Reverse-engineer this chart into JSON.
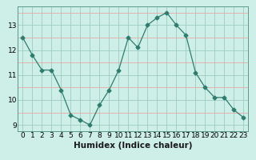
{
  "x": [
    0,
    1,
    2,
    3,
    4,
    5,
    6,
    7,
    8,
    9,
    10,
    11,
    12,
    13,
    14,
    15,
    16,
    17,
    18,
    19,
    20,
    21,
    22,
    23
  ],
  "y": [
    12.5,
    11.8,
    11.2,
    11.2,
    10.4,
    9.4,
    9.2,
    9.0,
    9.8,
    10.4,
    11.2,
    12.5,
    12.1,
    13.0,
    13.3,
    13.5,
    13.0,
    12.6,
    11.1,
    10.5,
    10.1,
    10.1,
    9.6,
    9.3
  ],
  "line_color": "#2e7d6e",
  "marker": "D",
  "marker_size": 2.5,
  "bg_color": "#ceeee8",
  "grid_color_major": "#9eccc4",
  "grid_color_minor": "#e8a8a8",
  "xlabel": "Humidex (Indice chaleur)",
  "xlim": [
    -0.5,
    23.5
  ],
  "ylim": [
    8.75,
    13.75
  ],
  "yticks": [
    9,
    10,
    11,
    12,
    13
  ],
  "xticks": [
    0,
    1,
    2,
    3,
    4,
    5,
    6,
    7,
    8,
    9,
    10,
    11,
    12,
    13,
    14,
    15,
    16,
    17,
    18,
    19,
    20,
    21,
    22,
    23
  ],
  "xlabel_fontsize": 7.5,
  "tick_fontsize": 6.5
}
